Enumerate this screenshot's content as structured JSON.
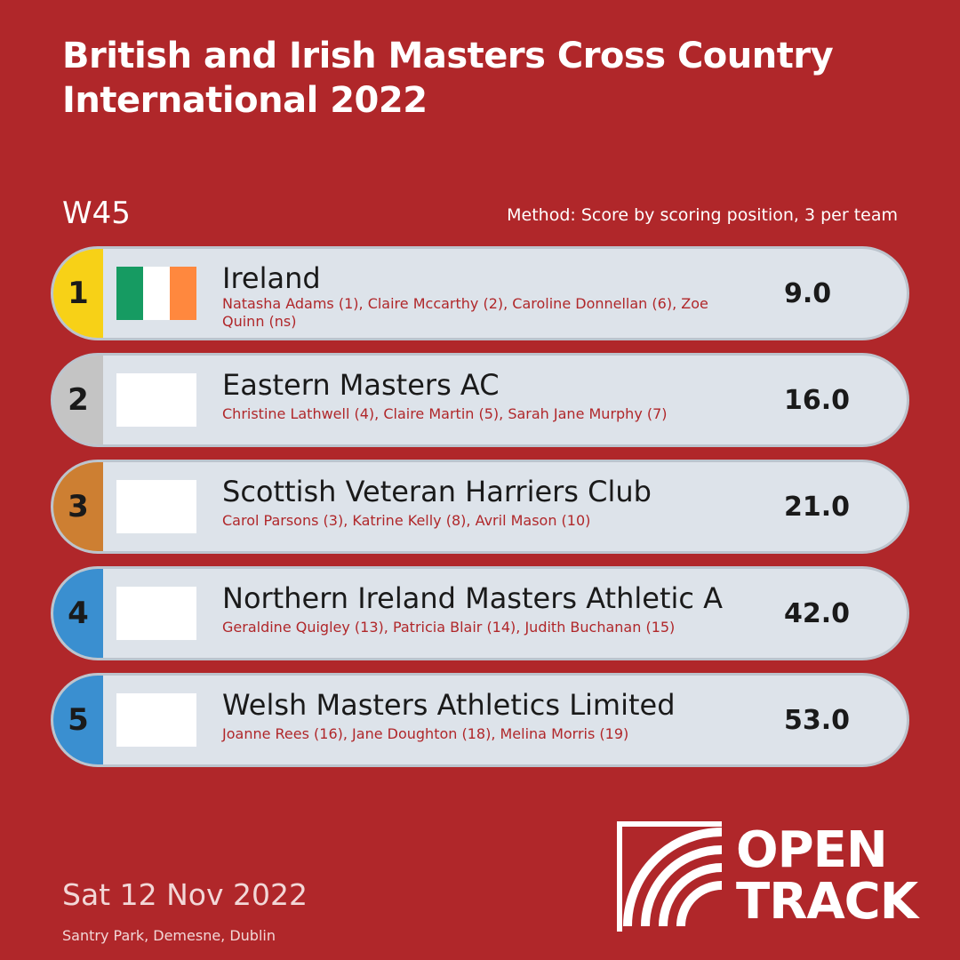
{
  "event": {
    "title": "British and Irish Masters Cross Country International 2022",
    "category": "W45",
    "method": "Method: Score by scoring position, 3 per team",
    "date": "Sat 12 Nov 2022",
    "venue": "Santry Park, Demesne, Dublin"
  },
  "colors": {
    "background": "#b0272a",
    "gold": "#f7d117",
    "silver": "#c4c4c4",
    "bronze": "#cd7f32",
    "other": "#3a8fd0",
    "row_bg": "#dde3ea",
    "member_text": "#b0272a"
  },
  "results": [
    {
      "rank": "1",
      "team": "Ireland",
      "members": "Natasha Adams (1), Claire Mccarthy (2), Caroline Donnellan (6), Zoe Quinn (ns)",
      "score": "9.0",
      "rank_color": "#f7d117",
      "flag": [
        "#169b62",
        "#ffffff",
        "#ff883e"
      ]
    },
    {
      "rank": "2",
      "team": "Eastern Masters AC",
      "members": "Christine Lathwell (4), Claire Martin (5), Sarah Jane Murphy (7)",
      "score": "16.0",
      "rank_color": "#c4c4c4",
      "flag": []
    },
    {
      "rank": "3",
      "team": "Scottish Veteran Harriers Club",
      "members": "Carol Parsons (3), Katrine Kelly (8), Avril Mason (10)",
      "score": "21.0",
      "rank_color": "#cd7f32",
      "flag": []
    },
    {
      "rank": "4",
      "team": "Northern Ireland Masters Athletic A",
      "members": "Geraldine Quigley (13), Patricia Blair (14), Judith Buchanan (15)",
      "score": "42.0",
      "rank_color": "#3a8fd0",
      "flag": []
    },
    {
      "rank": "5",
      "team": "Welsh Masters Athletics Limited",
      "members": "Joanne Rees (16), Jane Doughton (18), Melina Morris (19)",
      "score": "53.0",
      "rank_color": "#3a8fd0",
      "flag": []
    }
  ],
  "logo": {
    "line1": "OPEN",
    "line2": "TRACK",
    "icon": "open-track-logo-icon"
  }
}
